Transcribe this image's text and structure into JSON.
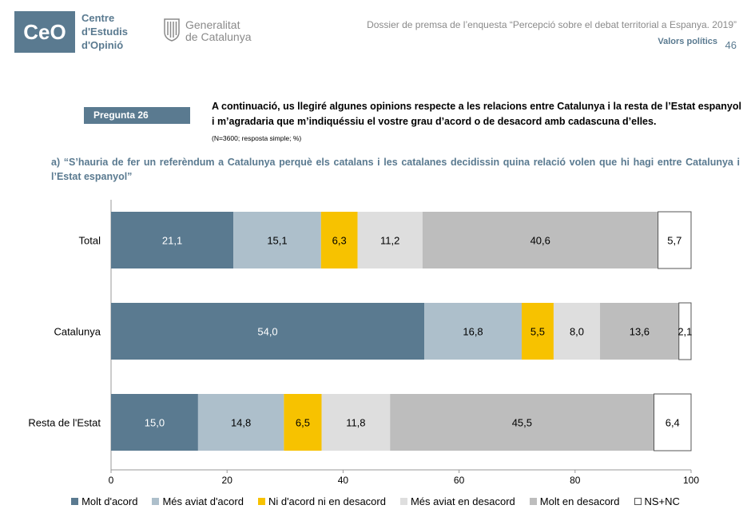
{
  "header": {
    "ceo_logo_text": "CeO",
    "ceo_name": [
      "Centre",
      "d'Estudis",
      "d'Opinió"
    ],
    "gen_name": [
      "Generalitat",
      "de Catalunya"
    ],
    "dossier": "Dossier de premsa de l’enquesta “Percepció sobre el debat territorial a Espanya. 2019”",
    "section": "Valors polítics",
    "page": "46"
  },
  "question": {
    "badge": "Pregunta 26",
    "text": "A continuació, us llegiré algunes opinions respecte a les relacions entre Catalunya i la resta de l’Estat espanyol i m’agradaria que m’indiquéssiu el vostre grau d’acord o de desacord amb cadascuna d’elles.",
    "note": "(N=3600; resposta simple; %)",
    "subquestion": "a) “S’hauria de fer un referèndum a Catalunya perquè els catalans i les catalanes decidissin quina relació volen que hi hagi entre Catalunya i l’Estat espanyol”"
  },
  "chart_data": {
    "type": "bar",
    "orientation": "horizontal",
    "stacked": true,
    "categories": [
      "Total",
      "Catalunya",
      "Resta de l'Estat"
    ],
    "series": [
      {
        "name": "Molt d'acord",
        "color": "#5a7a90",
        "values": [
          21.1,
          54.0,
          15.0
        ],
        "labels": [
          "21,1",
          "54,0",
          "15,0"
        ]
      },
      {
        "name": "Més aviat d'acord",
        "color": "#adbfcb",
        "values": [
          15.1,
          16.8,
          14.8
        ],
        "labels": [
          "15,1",
          "16,8",
          "14,8"
        ]
      },
      {
        "name": "Ni d'acord ni en desacord",
        "color": "#f7c200",
        "values": [
          6.3,
          5.5,
          6.5
        ],
        "labels": [
          "6,3",
          "5,5",
          "6,5"
        ]
      },
      {
        "name": "Més aviat en desacord",
        "color": "#dedede",
        "values": [
          11.2,
          8.0,
          11.8
        ],
        "labels": [
          "11,2",
          "8,0",
          "11,8"
        ]
      },
      {
        "name": "Molt en desacord",
        "color": "#bdbdbd",
        "values": [
          40.6,
          13.6,
          45.5
        ],
        "labels": [
          "40,6",
          "13,6",
          "45,5"
        ]
      },
      {
        "name": "NS+NC",
        "color": "#ffffff",
        "values": [
          5.7,
          2.1,
          6.4
        ],
        "labels": [
          "5,7",
          "2,1",
          "6,4"
        ]
      }
    ],
    "xlim": [
      0,
      100
    ],
    "xticks": [
      "0",
      "20",
      "40",
      "60",
      "80",
      "100"
    ],
    "legend": "bottom"
  }
}
